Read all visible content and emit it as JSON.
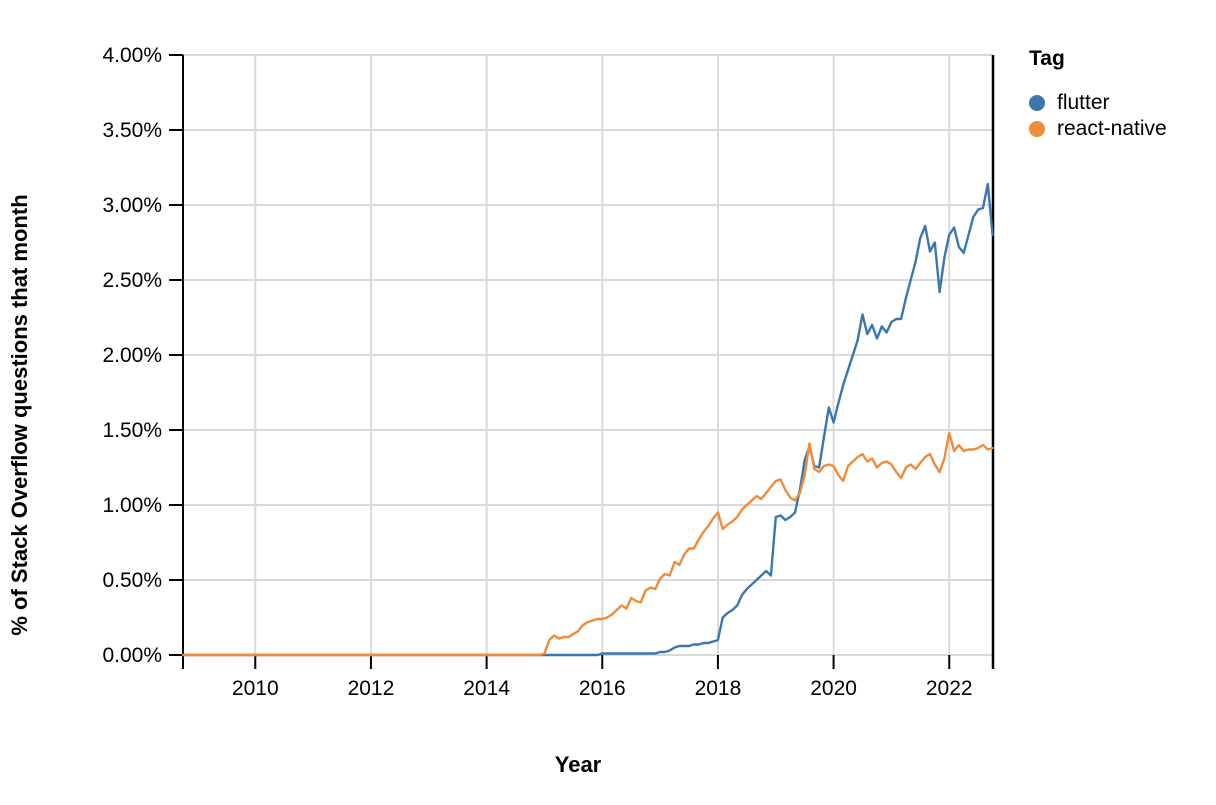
{
  "colors": {
    "background": "#ffffff",
    "gridline": "#d9d9d9",
    "axis": "#000000",
    "flutter_blue": "#3c76af",
    "react_native_orange": "#ef8c3c"
  },
  "legend": {
    "title": "Tag",
    "items": [
      {
        "label": "flutter",
        "color": "#3c76af"
      },
      {
        "label": "react-native",
        "color": "#ef8c3c"
      }
    ]
  },
  "chart_data": {
    "type": "line",
    "xlabel": "Year",
    "ylabel": "% of Stack Overflow questions that month",
    "legend_title": "Tag",
    "legend_position": "right",
    "grid": true,
    "xlim": [
      2008.75,
      2022.76
    ],
    "ylim": [
      0,
      4
    ],
    "x_ticks": [
      2010,
      2012,
      2014,
      2016,
      2018,
      2020,
      2022
    ],
    "y_ticks": [
      {
        "value": 0.0,
        "label": "0.00%"
      },
      {
        "value": 0.5,
        "label": "0.50%"
      },
      {
        "value": 1.0,
        "label": "1.00%"
      },
      {
        "value": 1.5,
        "label": "1.50%"
      },
      {
        "value": 2.0,
        "label": "2.00%"
      },
      {
        "value": 2.5,
        "label": "2.50%"
      },
      {
        "value": 3.0,
        "label": "3.00%"
      },
      {
        "value": 3.5,
        "label": "3.50%"
      },
      {
        "value": 4.0,
        "label": "4.00%"
      }
    ],
    "x_start_decimal_year": 2008.75,
    "x_interval": "monthly",
    "unit": "percent of Stack Overflow questions that month",
    "series": [
      {
        "name": "flutter",
        "color": "#3c76af",
        "values": [
          0,
          0,
          0,
          0,
          0,
          0,
          0,
          0,
          0,
          0,
          0,
          0,
          0,
          0,
          0,
          0,
          0,
          0,
          0,
          0,
          0,
          0,
          0,
          0,
          0,
          0,
          0,
          0,
          0,
          0,
          0,
          0,
          0,
          0,
          0,
          0,
          0,
          0,
          0,
          0,
          0,
          0,
          0,
          0,
          0,
          0,
          0,
          0,
          0,
          0,
          0,
          0,
          0,
          0,
          0,
          0,
          0,
          0,
          0,
          0,
          0,
          0,
          0,
          0,
          0,
          0,
          0,
          0,
          0,
          0,
          0,
          0,
          0,
          0,
          0,
          0,
          0,
          0,
          0,
          0,
          0,
          0,
          0,
          0,
          0,
          0,
          0,
          0.01,
          0.01,
          0.01,
          0.01,
          0.01,
          0.01,
          0.01,
          0.01,
          0.01,
          0.01,
          0.01,
          0.01,
          0.02,
          0.02,
          0.03,
          0.05,
          0.06,
          0.06,
          0.06,
          0.07,
          0.07,
          0.08,
          0.08,
          0.09,
          0.1,
          0.25,
          0.28,
          0.3,
          0.33,
          0.4,
          0.44,
          0.47,
          0.5,
          0.53,
          0.56,
          0.53,
          0.92,
          0.93,
          0.9,
          0.92,
          0.95,
          1.1,
          1.3,
          1.39,
          1.26,
          1.25,
          1.45,
          1.65,
          1.55,
          1.68,
          1.8,
          1.9,
          2.0,
          2.1,
          2.27,
          2.14,
          2.2,
          2.11,
          2.19,
          2.15,
          2.22,
          2.24,
          2.24,
          2.38,
          2.5,
          2.62,
          2.78,
          2.86,
          2.69,
          2.75,
          2.42,
          2.65,
          2.8,
          2.85,
          2.72,
          2.68,
          2.8,
          2.92,
          2.97,
          2.98,
          3.14,
          2.8
        ]
      },
      {
        "name": "react-native",
        "color": "#ef8c3c",
        "values": [
          0,
          0,
          0,
          0,
          0,
          0,
          0,
          0,
          0,
          0,
          0,
          0,
          0,
          0,
          0,
          0,
          0,
          0,
          0,
          0,
          0,
          0,
          0,
          0,
          0,
          0,
          0,
          0,
          0,
          0,
          0,
          0,
          0,
          0,
          0,
          0,
          0,
          0,
          0,
          0,
          0,
          0,
          0,
          0,
          0,
          0,
          0,
          0,
          0,
          0,
          0,
          0,
          0,
          0,
          0,
          0,
          0,
          0,
          0,
          0,
          0,
          0,
          0,
          0,
          0,
          0,
          0,
          0,
          0,
          0,
          0,
          0,
          0,
          0,
          0,
          0.01,
          0.1,
          0.13,
          0.11,
          0.12,
          0.12,
          0.14,
          0.16,
          0.2,
          0.22,
          0.23,
          0.24,
          0.24,
          0.25,
          0.27,
          0.3,
          0.33,
          0.31,
          0.38,
          0.36,
          0.35,
          0.43,
          0.45,
          0.44,
          0.51,
          0.54,
          0.53,
          0.62,
          0.6,
          0.67,
          0.71,
          0.71,
          0.77,
          0.82,
          0.86,
          0.91,
          0.95,
          0.84,
          0.87,
          0.89,
          0.92,
          0.97,
          1.0,
          1.03,
          1.06,
          1.04,
          1.08,
          1.12,
          1.16,
          1.17,
          1.1,
          1.05,
          1.03,
          1.08,
          1.2,
          1.41,
          1.24,
          1.22,
          1.26,
          1.27,
          1.26,
          1.2,
          1.16,
          1.26,
          1.29,
          1.32,
          1.34,
          1.29,
          1.31,
          1.25,
          1.28,
          1.29,
          1.27,
          1.22,
          1.18,
          1.25,
          1.27,
          1.24,
          1.28,
          1.32,
          1.34,
          1.27,
          1.22,
          1.31,
          1.48,
          1.36,
          1.4,
          1.36,
          1.37,
          1.37,
          1.38,
          1.4,
          1.37,
          1.38
        ]
      }
    ]
  }
}
